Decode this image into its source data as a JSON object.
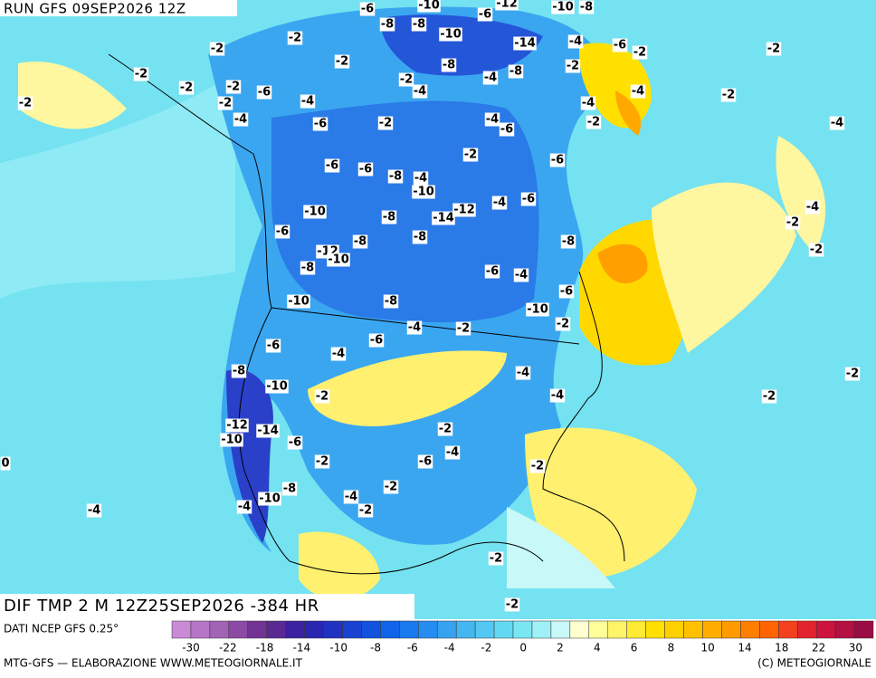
{
  "header": {
    "title": "RUN GFS 09SEP2026 12Z"
  },
  "map": {
    "caption": "DIF TMP 2 M 12Z25SEP2026 -384 HR",
    "labels": [
      -6,
      -10,
      -6,
      -12,
      -10,
      -8,
      -8,
      -8,
      -10,
      -2,
      -2,
      -14,
      -4,
      -6,
      -2,
      -2,
      -2,
      -2,
      -2,
      -2,
      -8,
      -4,
      -2,
      -8,
      -2,
      -4,
      -6,
      -2,
      -2,
      -4,
      -6,
      -4,
      -2,
      -4,
      -6,
      -4,
      -2,
      -4,
      -4,
      -2,
      -6,
      -6,
      -8,
      -4,
      -10,
      -6,
      -2,
      -10,
      -8,
      -14,
      -12,
      -4,
      -6,
      -2,
      -4,
      -6,
      -12,
      -8,
      -8,
      -8,
      -2,
      -8,
      -10,
      -6,
      -4,
      -6,
      -10,
      -8,
      -10,
      -2,
      -4,
      -2,
      -6,
      -6,
      -8,
      -4,
      -4,
      -2,
      -10,
      -2,
      -4,
      -2,
      -12,
      -14,
      -10,
      -6,
      -2,
      -4,
      -6,
      -2,
      -2,
      0,
      -8,
      -10,
      -4,
      -2,
      -2,
      -4,
      -4,
      -2,
      -2
    ]
  },
  "legend": {
    "source": "DATI NCEP GFS 0.25°",
    "colors": [
      "#c98ad6",
      "#b676c8",
      "#a262b6",
      "#8c4aa4",
      "#723494",
      "#5a2a92",
      "#3c22a0",
      "#2a26b0",
      "#2232c0",
      "#1a42d0",
      "#1252de",
      "#1064e8",
      "#1878ee",
      "#268cf0",
      "#36a2f0",
      "#44b6f0",
      "#52c8f2",
      "#62d8f2",
      "#7ae6f4",
      "#9ef0f6",
      "#c8f8f8",
      "#ffffd0",
      "#ffff9a",
      "#fff468",
      "#ffea34",
      "#ffe000",
      "#ffd000",
      "#ffc000",
      "#ffae00",
      "#ff9a00",
      "#ff8000",
      "#ff6400",
      "#f4401e",
      "#e2242e",
      "#cc143c",
      "#b41042",
      "#9a0c44"
    ],
    "ticks": [
      -30,
      -22,
      -18,
      -14,
      -10,
      -8,
      -6,
      -4,
      -2,
      0,
      2,
      4,
      6,
      8,
      10,
      14,
      18,
      22,
      30
    ]
  },
  "footer": {
    "left": "MTG-GFS — ELABORAZIONE WWW.METEOGIORNALE.IT",
    "right": "(C) METEOGIORNALE"
  }
}
